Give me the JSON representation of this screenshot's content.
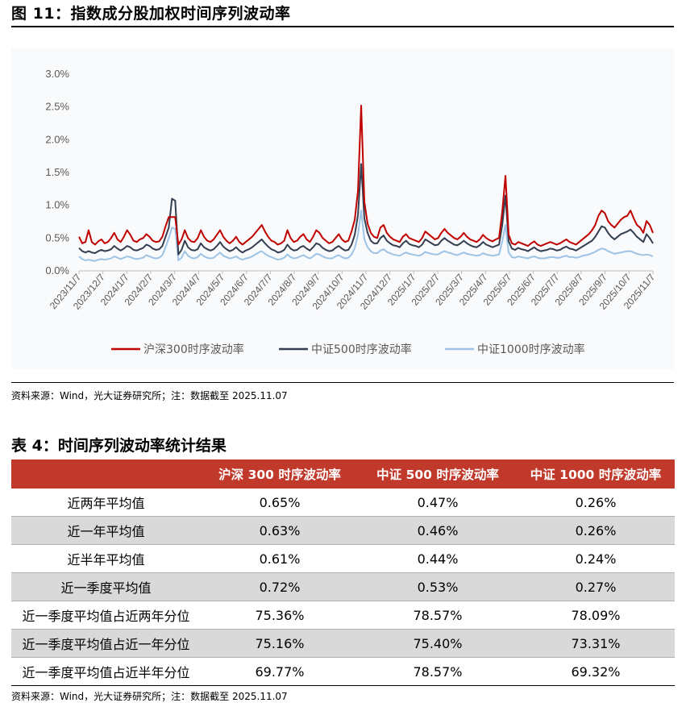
{
  "figure_title": "图 11：指数成分股加权时间序列波动率",
  "chart_source": "资料来源：Wind，光大证券研究所；注：数据截至 2025.11.07",
  "table_title": "表 4：时间序列波动率统计结果",
  "table_source": "资料来源：Wind，光大证券研究所；注：数据截至 2025.11.07",
  "colors": {
    "hs300": "#c00000",
    "zz500": "#333f50",
    "zz1000": "#9dc3e6",
    "header_bg": "#c0392b",
    "shade": "#d9d9d9"
  },
  "chart_data": {
    "type": "line",
    "title": "",
    "xlabel": "",
    "ylabel": "",
    "ylim": [
      0,
      3.0
    ],
    "y_ticks": [
      "0.0%",
      "0.5%",
      "1.0%",
      "1.5%",
      "2.0%",
      "2.5%",
      "3.0%"
    ],
    "x_tick_labels": [
      "2023/11/7",
      "2023/12/7",
      "2024/1/7",
      "2024/2/7",
      "2024/3/7",
      "2024/4/7",
      "2024/5/7",
      "2024/6/7",
      "2024/7/7",
      "2024/8/7",
      "2024/9/7",
      "2024/10/7",
      "2024/11/7",
      "2024/12/7",
      "2025/1/7",
      "2025/2/7",
      "2025/3/7",
      "2025/4/7",
      "2025/5/7",
      "2025/6/7",
      "2025/7/7",
      "2025/8/7",
      "2025/9/7",
      "2025/10/7",
      "2025/11/7"
    ],
    "legend_position": "bottom",
    "grid": false,
    "series": [
      {
        "name": "沪深300时序波动率",
        "values": [
          0.52,
          0.42,
          0.44,
          0.62,
          0.44,
          0.4,
          0.45,
          0.48,
          0.42,
          0.44,
          0.5,
          0.58,
          0.48,
          0.44,
          0.52,
          0.62,
          0.55,
          0.46,
          0.44,
          0.48,
          0.5,
          0.56,
          0.52,
          0.46,
          0.44,
          0.45,
          0.52,
          0.68,
          0.82,
          0.82,
          0.82,
          0.4,
          0.48,
          0.62,
          0.5,
          0.45,
          0.44,
          0.5,
          0.62,
          0.52,
          0.46,
          0.44,
          0.48,
          0.55,
          0.62,
          0.52,
          0.46,
          0.42,
          0.46,
          0.52,
          0.44,
          0.4,
          0.44,
          0.48,
          0.52,
          0.58,
          0.64,
          0.7,
          0.6,
          0.52,
          0.46,
          0.44,
          0.4,
          0.42,
          0.46,
          0.62,
          0.5,
          0.44,
          0.46,
          0.52,
          0.56,
          0.48,
          0.44,
          0.52,
          0.62,
          0.58,
          0.5,
          0.46,
          0.42,
          0.44,
          0.5,
          0.56,
          0.48,
          0.44,
          0.46,
          0.6,
          0.78,
          1.22,
          2.52,
          1.05,
          0.72,
          0.58,
          0.52,
          0.5,
          0.66,
          0.7,
          0.58,
          0.52,
          0.48,
          0.46,
          0.44,
          0.52,
          0.56,
          0.5,
          0.48,
          0.46,
          0.44,
          0.5,
          0.6,
          0.56,
          0.52,
          0.48,
          0.5,
          0.58,
          0.64,
          0.58,
          0.54,
          0.5,
          0.48,
          0.52,
          0.58,
          0.52,
          0.48,
          0.46,
          0.44,
          0.48,
          0.55,
          0.5,
          0.47,
          0.45,
          0.48,
          0.5,
          0.9,
          1.45,
          0.55,
          0.42,
          0.4,
          0.44,
          0.42,
          0.4,
          0.38,
          0.42,
          0.45,
          0.4,
          0.38,
          0.4,
          0.42,
          0.44,
          0.42,
          0.4,
          0.42,
          0.45,
          0.48,
          0.44,
          0.42,
          0.4,
          0.44,
          0.48,
          0.52,
          0.56,
          0.62,
          0.7,
          0.84,
          0.92,
          0.88,
          0.76,
          0.7,
          0.66,
          0.72,
          0.78,
          0.82,
          0.84,
          0.92,
          0.8,
          0.7,
          0.66,
          0.58,
          0.76,
          0.7,
          0.58
        ]
      },
      {
        "name": "中证500时序波动率",
        "values": [
          0.35,
          0.3,
          0.28,
          0.3,
          0.28,
          0.27,
          0.3,
          0.32,
          0.3,
          0.31,
          0.33,
          0.38,
          0.34,
          0.31,
          0.34,
          0.38,
          0.36,
          0.32,
          0.31,
          0.33,
          0.35,
          0.4,
          0.38,
          0.34,
          0.32,
          0.33,
          0.38,
          0.52,
          0.66,
          1.1,
          1.07,
          0.25,
          0.32,
          0.46,
          0.36,
          0.32,
          0.31,
          0.33,
          0.42,
          0.36,
          0.33,
          0.31,
          0.33,
          0.38,
          0.44,
          0.37,
          0.33,
          0.3,
          0.32,
          0.36,
          0.31,
          0.28,
          0.31,
          0.33,
          0.36,
          0.4,
          0.44,
          0.48,
          0.42,
          0.37,
          0.33,
          0.31,
          0.28,
          0.29,
          0.32,
          0.4,
          0.34,
          0.31,
          0.32,
          0.36,
          0.38,
          0.34,
          0.31,
          0.36,
          0.42,
          0.4,
          0.35,
          0.32,
          0.3,
          0.31,
          0.35,
          0.38,
          0.34,
          0.31,
          0.32,
          0.4,
          0.55,
          0.85,
          1.63,
          0.8,
          0.58,
          0.46,
          0.42,
          0.42,
          0.5,
          0.54,
          0.46,
          0.42,
          0.39,
          0.38,
          0.36,
          0.42,
          0.46,
          0.41,
          0.39,
          0.38,
          0.36,
          0.4,
          0.48,
          0.45,
          0.42,
          0.39,
          0.4,
          0.46,
          0.5,
          0.46,
          0.43,
          0.4,
          0.39,
          0.42,
          0.46,
          0.42,
          0.39,
          0.37,
          0.36,
          0.39,
          0.44,
          0.4,
          0.38,
          0.36,
          0.38,
          0.4,
          0.7,
          1.15,
          0.45,
          0.34,
          0.32,
          0.35,
          0.33,
          0.32,
          0.3,
          0.33,
          0.36,
          0.32,
          0.3,
          0.31,
          0.32,
          0.34,
          0.33,
          0.31,
          0.32,
          0.35,
          0.37,
          0.34,
          0.33,
          0.31,
          0.34,
          0.37,
          0.4,
          0.43,
          0.46,
          0.52,
          0.6,
          0.68,
          0.66,
          0.58,
          0.52,
          0.48,
          0.52,
          0.56,
          0.58,
          0.6,
          0.63,
          0.58,
          0.52,
          0.48,
          0.44,
          0.56,
          0.5,
          0.42
        ]
      },
      {
        "name": "中证1000时序波动率",
        "values": [
          0.22,
          0.18,
          0.16,
          0.17,
          0.16,
          0.15,
          0.17,
          0.18,
          0.17,
          0.18,
          0.19,
          0.22,
          0.2,
          0.18,
          0.2,
          0.22,
          0.21,
          0.19,
          0.18,
          0.19,
          0.2,
          0.24,
          0.22,
          0.2,
          0.19,
          0.2,
          0.24,
          0.36,
          0.5,
          0.66,
          0.64,
          0.16,
          0.2,
          0.3,
          0.23,
          0.2,
          0.19,
          0.21,
          0.26,
          0.22,
          0.2,
          0.19,
          0.2,
          0.24,
          0.28,
          0.23,
          0.21,
          0.19,
          0.2,
          0.22,
          0.19,
          0.17,
          0.19,
          0.2,
          0.22,
          0.25,
          0.28,
          0.3,
          0.26,
          0.23,
          0.21,
          0.19,
          0.17,
          0.18,
          0.2,
          0.25,
          0.21,
          0.19,
          0.2,
          0.22,
          0.24,
          0.21,
          0.19,
          0.22,
          0.26,
          0.25,
          0.22,
          0.2,
          0.19,
          0.19,
          0.22,
          0.24,
          0.21,
          0.19,
          0.2,
          0.25,
          0.35,
          0.55,
          0.92,
          0.48,
          0.36,
          0.3,
          0.27,
          0.27,
          0.31,
          0.33,
          0.29,
          0.27,
          0.25,
          0.24,
          0.23,
          0.26,
          0.28,
          0.26,
          0.25,
          0.24,
          0.23,
          0.25,
          0.29,
          0.27,
          0.26,
          0.25,
          0.25,
          0.28,
          0.3,
          0.28,
          0.27,
          0.25,
          0.24,
          0.26,
          0.28,
          0.26,
          0.25,
          0.24,
          0.23,
          0.24,
          0.27,
          0.25,
          0.24,
          0.23,
          0.24,
          0.25,
          0.45,
          0.7,
          0.28,
          0.21,
          0.2,
          0.22,
          0.21,
          0.2,
          0.19,
          0.21,
          0.22,
          0.2,
          0.19,
          0.19,
          0.2,
          0.21,
          0.21,
          0.2,
          0.2,
          0.22,
          0.23,
          0.21,
          0.21,
          0.2,
          0.21,
          0.23,
          0.24,
          0.25,
          0.27,
          0.29,
          0.32,
          0.34,
          0.33,
          0.3,
          0.28,
          0.26,
          0.27,
          0.28,
          0.29,
          0.3,
          0.3,
          0.28,
          0.26,
          0.25,
          0.24,
          0.25,
          0.24,
          0.22
        ]
      }
    ]
  },
  "table": {
    "headers": [
      "",
      "沪深 300 时序波动率",
      "中证 500 时序波动率",
      "中证 1000 时序波动率"
    ],
    "rows": [
      {
        "label": "近两年平均值",
        "values": [
          "0.65%",
          "0.47%",
          "0.26%"
        ]
      },
      {
        "label": "近一年平均值",
        "values": [
          "0.63%",
          "0.46%",
          "0.26%"
        ]
      },
      {
        "label": "近半年平均值",
        "values": [
          "0.61%",
          "0.44%",
          "0.24%"
        ]
      },
      {
        "label": "近一季度平均值",
        "values": [
          "0.72%",
          "0.53%",
          "0.27%"
        ]
      },
      {
        "label": "近一季度平均值占近两年分位",
        "values": [
          "75.36%",
          "78.57%",
          "78.09%"
        ]
      },
      {
        "label": "近一季度平均值占近一年分位",
        "values": [
          "75.16%",
          "75.40%",
          "73.31%"
        ]
      },
      {
        "label": "近一季度平均值占近半年分位",
        "values": [
          "69.77%",
          "78.57%",
          "69.32%"
        ]
      }
    ]
  }
}
